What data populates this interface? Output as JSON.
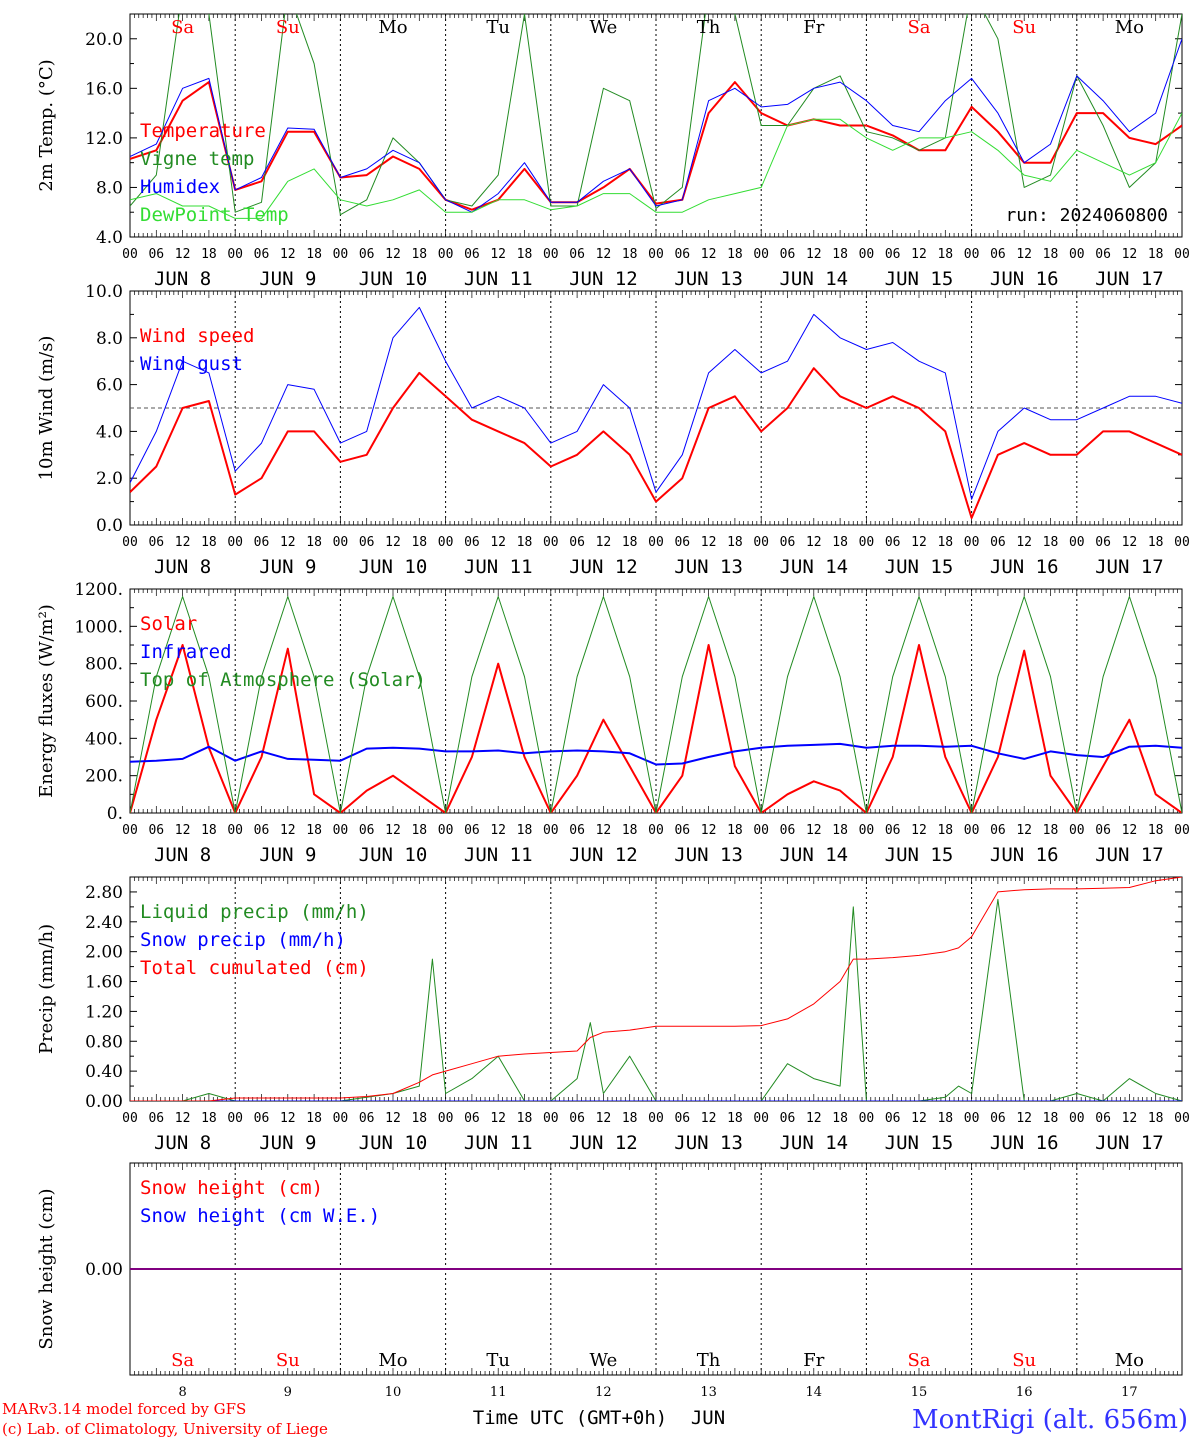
{
  "header": {
    "run_label": "run: 2024060800"
  },
  "footer": {
    "credit_line1": "MARv3.14 model forced by GFS",
    "credit_line2": "(c) Lab. of Climatology, University of Liege",
    "time_axis_label": "Time UTC (GMT+0h)",
    "month_label": "JUN",
    "station": "MontRigi (alt. 656m)"
  },
  "days": {
    "weekdays": [
      "Sa",
      "Su",
      "Mo",
      "Tu",
      "We",
      "Th",
      "Fr",
      "Sa",
      "Su",
      "Mo"
    ],
    "weekend_flags": [
      true,
      true,
      false,
      false,
      false,
      false,
      false,
      true,
      true,
      false
    ],
    "dates": [
      "JUN  8",
      "JUN  9",
      "JUN 10",
      "JUN 11",
      "JUN 12",
      "JUN 13",
      "JUN 14",
      "JUN 15",
      "JUN 16",
      "JUN 17"
    ],
    "day_numbers": [
      "8",
      "9",
      "10",
      "11",
      "12",
      "13",
      "14",
      "15",
      "16",
      "17"
    ],
    "hour_ticks": [
      "00",
      "06",
      "12",
      "18"
    ],
    "final_hour": "00"
  },
  "colors": {
    "red": "#ff0000",
    "green": "#228b22",
    "blue": "#0000ff",
    "lightgreen": "#33dd33",
    "purple": "#800080",
    "station": "#3333ff"
  },
  "chart_data": [
    {
      "id": "temp",
      "type": "line",
      "ylabel": "2m Temp. (°C)",
      "ylim": [
        4,
        22
      ],
      "yticks": [
        "4.0",
        "8.0",
        "12.0",
        "16.0",
        "20.0"
      ],
      "ytick_values": [
        4,
        8,
        12,
        16,
        20
      ],
      "x_hours": [
        0,
        6,
        12,
        18,
        24,
        30,
        36,
        42,
        48,
        54,
        60,
        66,
        72,
        78,
        84,
        90,
        96,
        102,
        108,
        114,
        120,
        126,
        132,
        138,
        144,
        150,
        156,
        162,
        168,
        174,
        180,
        186,
        192,
        198,
        204,
        210,
        216,
        222,
        228,
        234,
        240
      ],
      "series": [
        {
          "name": "Temperature",
          "color": "#ff0000",
          "width": 2,
          "values": [
            10.3,
            11,
            15,
            16.5,
            7.8,
            8.5,
            12.5,
            12.5,
            8.8,
            9,
            10.5,
            9.5,
            7,
            6.2,
            7,
            9.5,
            6.8,
            6.8,
            8,
            9.5,
            6.7,
            7,
            14,
            16.5,
            14,
            13,
            13.5,
            13,
            13,
            12.2,
            11,
            11,
            14.5,
            12.5,
            10,
            10,
            14,
            14,
            12,
            11.5,
            13
          ]
        },
        {
          "name": "Vigne temp",
          "color": "#228b22",
          "width": 1,
          "values": [
            6.5,
            9,
            24,
            22,
            6,
            6.8,
            24,
            18,
            5.8,
            7,
            12,
            10,
            7,
            6.5,
            9,
            22,
            6.5,
            6.5,
            16,
            15,
            6.3,
            8,
            24,
            22,
            13,
            13,
            16,
            17,
            12.5,
            12,
            11,
            12,
            24,
            20,
            8,
            9,
            17,
            13,
            8,
            10,
            22
          ]
        },
        {
          "name": "Humidex",
          "color": "#0000ff",
          "width": 1,
          "values": [
            10.5,
            11.5,
            16,
            16.8,
            7.8,
            8.8,
            12.8,
            12.7,
            8.8,
            9.5,
            11,
            10,
            7,
            6,
            7.5,
            10,
            6.8,
            6.8,
            8.5,
            9.5,
            6.5,
            7,
            15,
            16,
            14.5,
            14.7,
            16,
            16.5,
            15,
            13,
            12.5,
            15,
            16.8,
            14,
            10,
            11.5,
            17,
            15,
            12.5,
            14,
            20
          ]
        },
        {
          "name": "DewPoint Temp",
          "color": "#33dd33",
          "width": 1,
          "values": [
            7,
            7.5,
            6.5,
            6.5,
            5.5,
            5.5,
            8.5,
            9.5,
            7,
            6.5,
            7,
            7.8,
            6,
            6,
            7,
            7,
            6.2,
            6.5,
            7.5,
            7.5,
            6,
            6,
            7,
            7.5,
            8,
            13,
            13.5,
            13.5,
            12,
            11,
            12,
            12,
            12.5,
            11,
            9,
            8.5,
            11,
            10,
            9,
            10,
            14
          ]
        }
      ],
      "legend": [
        "Temperature",
        "Vigne temp",
        "Humidex",
        "DewPoint Temp"
      ]
    },
    {
      "id": "wind",
      "type": "line",
      "ylabel": "10m Wind (m/s)",
      "ylim": [
        0,
        10
      ],
      "yticks": [
        "0.0",
        "2.0",
        "4.0",
        "6.0",
        "8.0",
        "10.0"
      ],
      "ytick_values": [
        0,
        2,
        4,
        6,
        8,
        10
      ],
      "reference_line": 5,
      "x_hours": [
        0,
        6,
        12,
        18,
        24,
        30,
        36,
        42,
        48,
        54,
        60,
        66,
        72,
        78,
        84,
        90,
        96,
        102,
        108,
        114,
        120,
        126,
        132,
        138,
        144,
        150,
        156,
        162,
        168,
        174,
        180,
        186,
        192,
        198,
        204,
        210,
        216,
        222,
        228,
        234,
        240
      ],
      "series": [
        {
          "name": "Wind speed",
          "color": "#ff0000",
          "width": 2,
          "values": [
            1.4,
            2.5,
            5,
            5.3,
            1.3,
            2,
            4,
            4,
            2.7,
            3,
            5,
            6.5,
            5.5,
            4.5,
            4,
            3.5,
            2.5,
            3,
            4,
            3,
            1,
            2,
            5,
            5.5,
            4,
            5,
            6.7,
            5.5,
            5,
            5.5,
            5,
            4,
            0.3,
            3,
            3.5,
            3,
            3,
            4,
            4,
            3.5,
            3
          ]
        },
        {
          "name": "Wind gust",
          "color": "#0000ff",
          "width": 1,
          "values": [
            1.8,
            4,
            7,
            6.5,
            2.3,
            3.5,
            6,
            5.8,
            3.5,
            4,
            8,
            9.3,
            7,
            5,
            5.5,
            5,
            3.5,
            4,
            6,
            5,
            1.4,
            3,
            6.5,
            7.5,
            6.5,
            7,
            9,
            8,
            7.5,
            7.8,
            7,
            6.5,
            1.1,
            4,
            5,
            4.5,
            4.5,
            5,
            5.5,
            5.5,
            5.2
          ]
        }
      ],
      "legend": [
        "Wind speed",
        "Wind gust"
      ]
    },
    {
      "id": "energy",
      "type": "line",
      "ylabel": "Energy fluxes (W/m²)",
      "ylim": [
        0,
        1200
      ],
      "yticks": [
        "0.",
        "200.",
        "400.",
        "600.",
        "800.",
        "1000.",
        "1200."
      ],
      "ytick_values": [
        0,
        200,
        400,
        600,
        800,
        1000,
        1200
      ],
      "x_hours": [
        0,
        6,
        12,
        18,
        24,
        30,
        36,
        42,
        48,
        54,
        60,
        66,
        72,
        78,
        84,
        90,
        96,
        102,
        108,
        114,
        120,
        126,
        132,
        138,
        144,
        150,
        156,
        162,
        168,
        174,
        180,
        186,
        192,
        198,
        204,
        210,
        216,
        222,
        228,
        234,
        240
      ],
      "series": [
        {
          "name": "Solar",
          "color": "#ff0000",
          "width": 2,
          "values": [
            0,
            500,
            900,
            350,
            0,
            300,
            880,
            100,
            0,
            120,
            200,
            100,
            0,
            300,
            800,
            300,
            0,
            200,
            500,
            250,
            0,
            200,
            900,
            250,
            0,
            100,
            170,
            120,
            0,
            300,
            900,
            300,
            0,
            300,
            870,
            200,
            0,
            250,
            500,
            100,
            0
          ]
        },
        {
          "name": "Infrared",
          "color": "#0000ff",
          "width": 2,
          "values": [
            275,
            280,
            290,
            355,
            280,
            330,
            290,
            285,
            280,
            345,
            350,
            345,
            330,
            330,
            335,
            320,
            330,
            335,
            330,
            320,
            260,
            265,
            300,
            330,
            350,
            360,
            365,
            370,
            350,
            360,
            360,
            355,
            360,
            320,
            290,
            330,
            310,
            300,
            355,
            360,
            350
          ]
        },
        {
          "name": "Top of Atmosphere (Solar)",
          "color": "#228b22",
          "width": 1,
          "values": [
            0,
            730,
            1160,
            730,
            0,
            730,
            1160,
            730,
            0,
            730,
            1160,
            730,
            0,
            730,
            1160,
            730,
            0,
            730,
            1160,
            730,
            0,
            730,
            1160,
            730,
            0,
            730,
            1160,
            730,
            0,
            730,
            1160,
            730,
            0,
            730,
            1160,
            730,
            0,
            730,
            1160,
            730,
            0
          ]
        }
      ],
      "legend": [
        "Solar",
        "Infrared",
        "Top of Atmosphere (Solar)"
      ]
    },
    {
      "id": "precip",
      "type": "line",
      "ylabel": "Precip (mm/h)",
      "ylim": [
        0,
        3.0
      ],
      "yticks": [
        "0.00",
        "0.40",
        "0.80",
        "1.20",
        "1.60",
        "2.00",
        "2.40",
        "2.80"
      ],
      "ytick_values": [
        0,
        0.4,
        0.8,
        1.2,
        1.6,
        2.0,
        2.4,
        2.8
      ],
      "x_hours": [
        0,
        6,
        12,
        18,
        24,
        30,
        36,
        42,
        48,
        54,
        60,
        66,
        69,
        72,
        78,
        84,
        90,
        96,
        102,
        105,
        108,
        114,
        120,
        126,
        132,
        138,
        144,
        150,
        156,
        162,
        165,
        168,
        174,
        180,
        186,
        189,
        192,
        198,
        204,
        210,
        216,
        222,
        228,
        234,
        240
      ],
      "series": [
        {
          "name": "Liquid precip (mm/h)",
          "color": "#228b22",
          "width": 1,
          "values": [
            0,
            0,
            0,
            0.1,
            0,
            0,
            0,
            0,
            0,
            0.05,
            0.1,
            0.2,
            1.9,
            0.1,
            0.3,
            0.6,
            0,
            0,
            0.3,
            1.05,
            0.1,
            0.6,
            0,
            0,
            0,
            0,
            0,
            0.5,
            0.3,
            0.2,
            2.6,
            0,
            0,
            0,
            0.05,
            0.2,
            0.1,
            2.7,
            0,
            0,
            0.1,
            0,
            0.3,
            0.1,
            0
          ]
        },
        {
          "name": "Snow precip (mm/h)",
          "color": "#0000ff",
          "width": 1,
          "values": [
            0,
            0,
            0,
            0,
            0,
            0,
            0,
            0,
            0,
            0,
            0,
            0,
            0,
            0,
            0,
            0,
            0,
            0,
            0,
            0,
            0,
            0,
            0,
            0,
            0,
            0,
            0,
            0,
            0,
            0,
            0,
            0,
            0,
            0,
            0,
            0,
            0,
            0,
            0,
            0,
            0,
            0,
            0,
            0,
            0
          ]
        },
        {
          "name": "Total cumulated (cm)",
          "color": "#ff0000",
          "width": 1,
          "values": [
            0,
            0,
            0,
            0,
            0.04,
            0.04,
            0.04,
            0.04,
            0.04,
            0.06,
            0.1,
            0.25,
            0.35,
            0.4,
            0.5,
            0.6,
            0.63,
            0.65,
            0.67,
            0.85,
            0.92,
            0.95,
            1.0,
            1.0,
            1.0,
            1.0,
            1.01,
            1.1,
            1.3,
            1.6,
            1.9,
            1.9,
            1.92,
            1.95,
            2.0,
            2.05,
            2.2,
            2.8,
            2.83,
            2.84,
            2.84,
            2.85,
            2.86,
            2.95,
            3.0
          ]
        }
      ],
      "legend": [
        "Liquid precip (mm/h)",
        "Snow precip (mm/h)",
        "Total cumulated (cm)"
      ]
    },
    {
      "id": "snow",
      "type": "line",
      "ylabel": "Snow height (cm)",
      "ylim": [
        -1,
        1
      ],
      "yticks": [
        "0.00"
      ],
      "ytick_values": [
        0
      ],
      "x_hours": [
        0,
        240
      ],
      "series": [
        {
          "name": "Snow height (cm)",
          "color": "#800080",
          "width": 2,
          "values": [
            0,
            0
          ]
        }
      ],
      "legend": [
        "Snow height (cm)",
        "Snow height (cm W.E.)"
      ],
      "legend_colors": [
        "#ff0000",
        "#0000ff"
      ]
    }
  ]
}
